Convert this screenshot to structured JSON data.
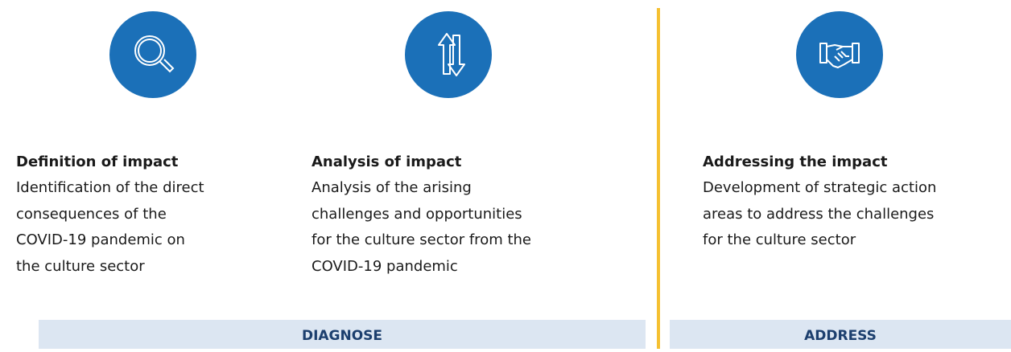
{
  "steps": [
    {
      "title": "Definition of impact",
      "lines": [
        "Identification of the direct",
        "consequences of the",
        "COVID-19 pandemic on",
        "the culture sector"
      ]
    },
    {
      "title": "Analysis of impact",
      "lines": [
        "Analysis of the arising",
        "challenges and opportunities",
        "for the culture sector from the",
        "COVID-19 pandemic"
      ]
    },
    {
      "title": "Addressing the impact",
      "lines": [
        "Development of strategic action",
        "areas to address the challenges",
        "for the culture sector"
      ]
    }
  ],
  "phases": [
    {
      "label": "DIAGNOSE"
    },
    {
      "label": "ADDRESS"
    }
  ]
}
